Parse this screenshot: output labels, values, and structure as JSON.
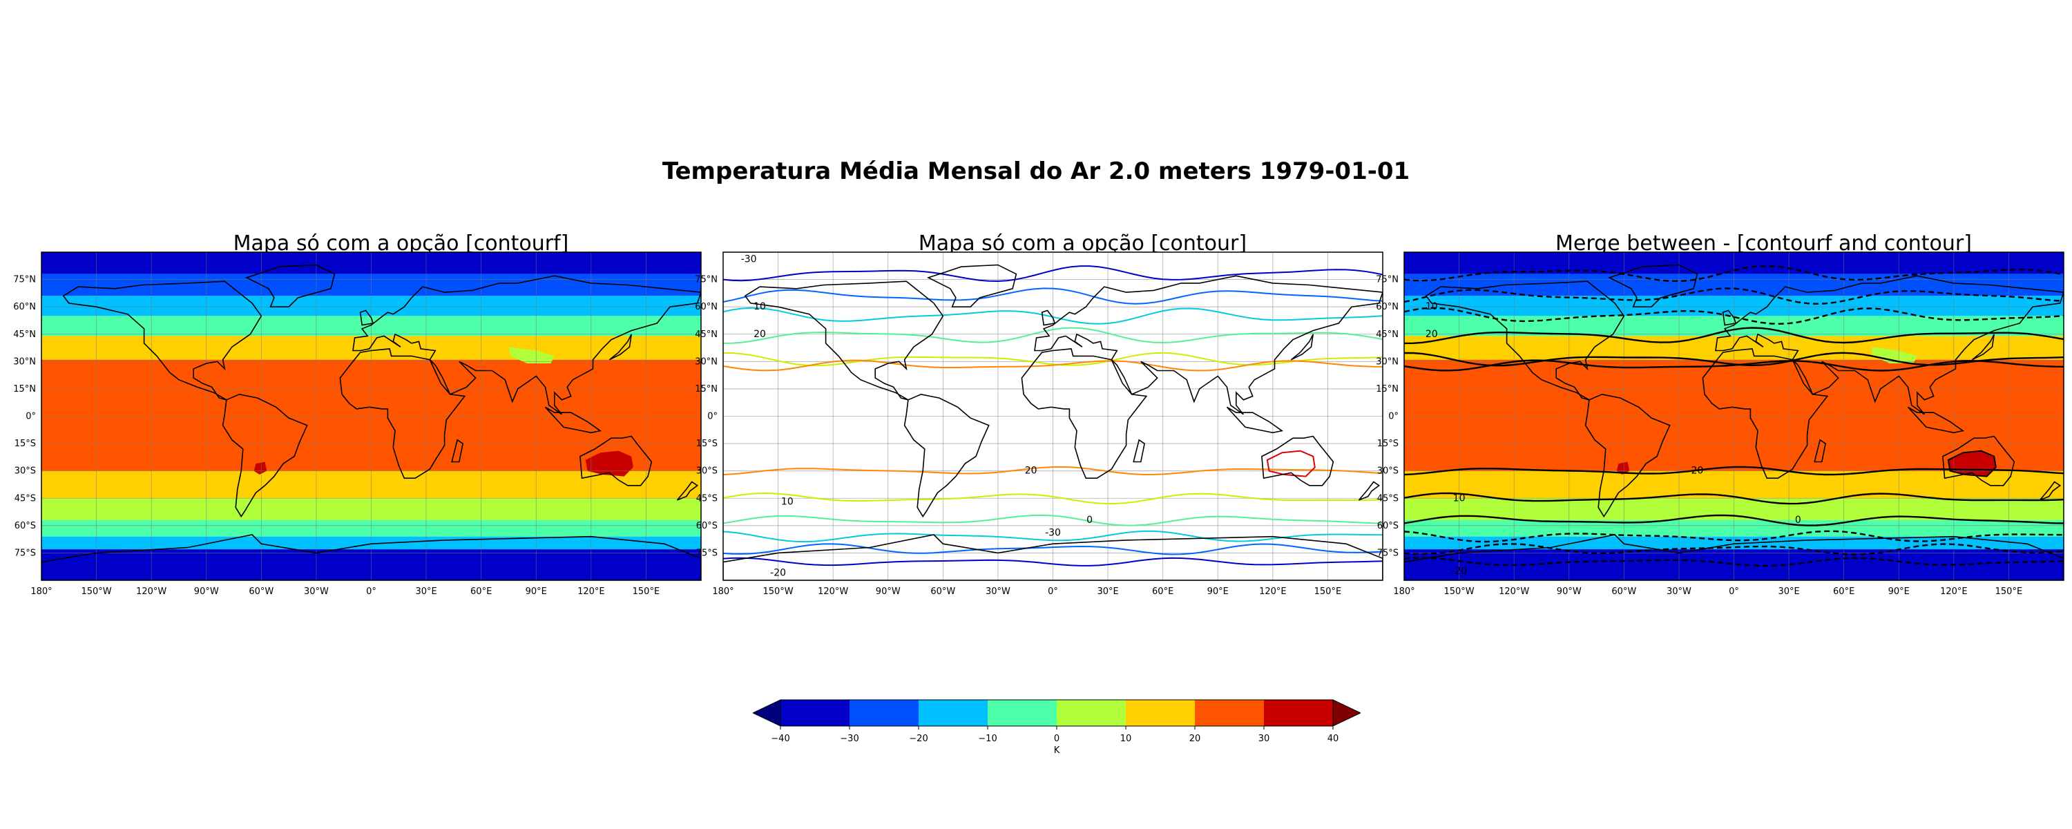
{
  "suptitle": "Temperatura Média Mensal do Ar 2.0 meters 1979-01-01",
  "panels": [
    {
      "title": "Mapa só com a opção [contourf]",
      "mode": "filled"
    },
    {
      "title": "Mapa só com a opção [contour]",
      "mode": "lines"
    },
    {
      "title": "Merge between - [contourf and contour]",
      "mode": "merge"
    }
  ],
  "axes": {
    "lat_ticks": [
      "75°N",
      "60°N",
      "45°N",
      "30°N",
      "15°N",
      "0°",
      "15°S",
      "30°S",
      "45°S",
      "60°S",
      "75°S"
    ],
    "lon_ticks": [
      "180°",
      "150°W",
      "120°W",
      "90°W",
      "60°W",
      "30°W",
      "0°",
      "30°E",
      "60°E",
      "90°E",
      "120°E",
      "150°E"
    ]
  },
  "contour_labels": {
    "lines": [
      "-30",
      "10",
      "20",
      "20",
      "10",
      "0",
      "-30",
      "-20"
    ],
    "merge": [
      "10",
      "20",
      "20",
      "10",
      "0",
      "-20"
    ]
  },
  "colorbar": {
    "levels": [
      -40,
      -30,
      -20,
      -10,
      0,
      10,
      20,
      30,
      40
    ],
    "tick_labels": [
      "−40",
      "−30",
      "−20",
      "−10",
      "0",
      "10",
      "20",
      "30",
      "40"
    ],
    "colors": [
      "#0000c8",
      "#0050ff",
      "#00c0ff",
      "#4dffa8",
      "#b0ff3a",
      "#ffd000",
      "#ff5500",
      "#c80000"
    ],
    "under_color": "#00007f",
    "over_color": "#7f0000",
    "label": "K"
  },
  "line_colors": {
    "-30": "#0000cc",
    "-20": "#0066ff",
    "-10": "#00ccdd",
    "0": "#55ee99",
    "10": "#ccee00",
    "20": "#ff8800",
    "30": "#dd0000"
  }
}
